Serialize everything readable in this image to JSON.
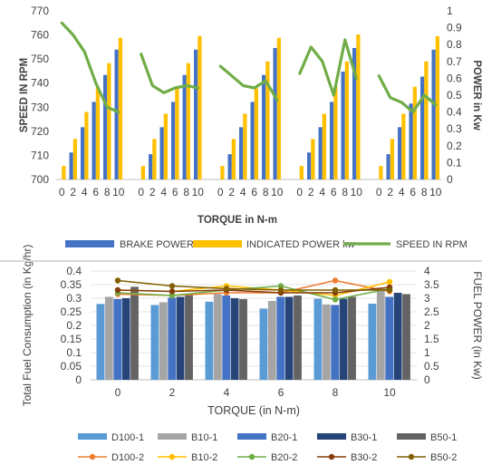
{
  "chart_data": [
    {
      "type": "bar",
      "categories": [
        "0",
        "2",
        "4",
        "6",
        "8",
        "10",
        "0",
        "2",
        "4",
        "6",
        "8",
        "10",
        "0",
        "2",
        "4",
        "6",
        "8",
        "10",
        "0",
        "2",
        "4",
        "6",
        "8",
        "10",
        "0",
        "2",
        "4",
        "6",
        "8",
        "10"
      ],
      "xlabel": "TORQUE in N-m",
      "ylabel_left": "SPEED IN RPM",
      "ylabel_right": "POWER in Kw",
      "ylim_left": [
        700,
        770
      ],
      "ylim_right": [
        0,
        1
      ],
      "left_ticks": [
        "700",
        "710",
        "720",
        "730",
        "740",
        "750",
        "760",
        "770"
      ],
      "right_ticks": [
        "0",
        "0.1",
        "0.2",
        "0.3",
        "0.4",
        "0.5",
        "0.6",
        "0.7",
        "0.8",
        "0.9",
        "1"
      ],
      "legend_position": "bottom",
      "series": [
        {
          "name": "BRAKE POWER kw",
          "kind": "bar",
          "axis": "right",
          "color": "#4472c4",
          "values": [
            0,
            0.16,
            0.31,
            0.46,
            0.62,
            0.77,
            0,
            0.15,
            0.31,
            0.46,
            0.62,
            0.77,
            0,
            0.15,
            0.31,
            0.46,
            0.62,
            0.78,
            0,
            0.16,
            0.31,
            0.46,
            0.64,
            0.78,
            0,
            0.15,
            0.31,
            0.45,
            0.61,
            0.77
          ]
        },
        {
          "name": "INDICATED POWER kw",
          "kind": "bar",
          "axis": "right",
          "color": "#ffc000",
          "values": [
            0.08,
            0.24,
            0.4,
            0.55,
            0.69,
            0.84,
            0.08,
            0.24,
            0.39,
            0.54,
            0.69,
            0.85,
            0.08,
            0.24,
            0.39,
            0.54,
            0.7,
            0.84,
            0.08,
            0.24,
            0.39,
            0.55,
            0.7,
            0.86,
            0.08,
            0.24,
            0.39,
            0.55,
            0.7,
            0.85
          ]
        },
        {
          "name": "SPEED IN RPM",
          "kind": "line",
          "axis": "left",
          "color": "#70ad47",
          "segmented_every": 6,
          "values": [
            765,
            760,
            753,
            740,
            730,
            728,
            752,
            739,
            736,
            738,
            739,
            738,
            747,
            743,
            739,
            738,
            741,
            733,
            744,
            755,
            749,
            735,
            758,
            742,
            743,
            734,
            732,
            728,
            735,
            731
          ]
        }
      ]
    },
    {
      "type": "bar",
      "categories": [
        "0",
        "2",
        "4",
        "6",
        "8",
        "10"
      ],
      "xlabel": "TORQUE (in N-m)",
      "ylabel_left": "Total Fuel Consumption (in Kg/hr)",
      "ylabel_right": "FUEL POWER (in Kw)",
      "ylim_left": [
        0,
        0.4
      ],
      "ylim_right": [
        0,
        4
      ],
      "left_ticks": [
        "0",
        "0.05",
        "0.1",
        "0.15",
        "0.2",
        "0.25",
        "0.3",
        "0.35",
        "0.4"
      ],
      "right_ticks": [
        "0",
        "0.5",
        "1",
        "1.5",
        "2",
        "2.5",
        "3",
        "3.5",
        "4"
      ],
      "legend_position": "bottom",
      "series": [
        {
          "name": "D100-1",
          "kind": "bar",
          "axis": "left",
          "color": "#5b9bd5",
          "values": [
            0.279,
            0.275,
            0.287,
            0.262,
            0.298,
            0.28
          ]
        },
        {
          "name": "B10-1",
          "kind": "bar",
          "axis": "left",
          "color": "#a5a5a5",
          "values": [
            0.305,
            0.285,
            0.315,
            0.29,
            0.277,
            0.335
          ]
        },
        {
          "name": "B20-1",
          "kind": "bar",
          "axis": "left",
          "color": "#4472c4",
          "values": [
            0.297,
            0.302,
            0.31,
            0.305,
            0.275,
            0.305
          ]
        },
        {
          "name": "B30-1",
          "kind": "bar",
          "axis": "left",
          "color": "#264478",
          "values": [
            0.3,
            0.305,
            0.3,
            0.305,
            0.298,
            0.32
          ]
        },
        {
          "name": "B50-1",
          "kind": "bar",
          "axis": "left",
          "color": "#636363",
          "values": [
            0.342,
            0.315,
            0.297,
            0.31,
            0.305,
            0.315
          ]
        },
        {
          "name": "D100-2",
          "kind": "line",
          "axis": "right",
          "color": "#ed7d31",
          "values": [
            3.15,
            3.1,
            3.2,
            3.2,
            3.65,
            3.25
          ]
        },
        {
          "name": "B10-2",
          "kind": "line",
          "axis": "right",
          "color": "#ffc000",
          "values": [
            3.3,
            3.25,
            3.45,
            3.3,
            3.1,
            3.6
          ]
        },
        {
          "name": "B20-2",
          "kind": "line",
          "axis": "right",
          "color": "#70ad47",
          "values": [
            3.2,
            3.1,
            3.3,
            3.45,
            2.95,
            3.35
          ]
        },
        {
          "name": "B30-2",
          "kind": "line",
          "axis": "right",
          "color": "#843c0c",
          "values": [
            3.3,
            3.25,
            3.3,
            3.2,
            3.2,
            3.4
          ]
        },
        {
          "name": "B50-2",
          "kind": "line",
          "axis": "right",
          "color": "#806000",
          "values": [
            3.65,
            3.45,
            3.35,
            3.3,
            3.3,
            3.3
          ]
        }
      ]
    }
  ]
}
